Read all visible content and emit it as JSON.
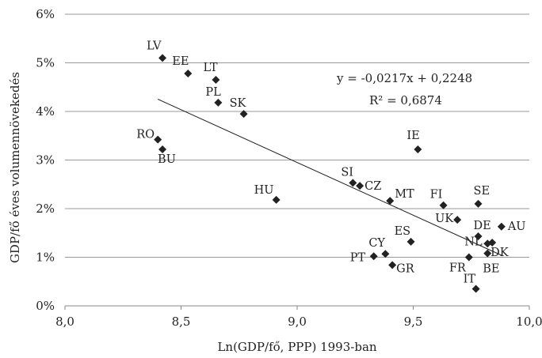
{
  "chart_data": {
    "type": "scatter",
    "xlabel": "Ln(GDP/fő, PPP) 1993-ban",
    "ylabel": "GDP/fő éves volumennövekedés",
    "xlim": [
      8.0,
      10.0
    ],
    "ylim": [
      0,
      6
    ],
    "x_ticks": [
      "8,0",
      "8,5",
      "9,0",
      "9,5",
      "10,0"
    ],
    "y_ticks": [
      "0%",
      "1%",
      "2%",
      "3%",
      "4%",
      "5%",
      "6%"
    ],
    "y_ticks_values": [
      0,
      1,
      2,
      3,
      4,
      5,
      6
    ],
    "x_ticks_values": [
      8.0,
      8.5,
      9.0,
      9.5,
      10.0
    ],
    "grid": "horizontal",
    "marker": "diamond",
    "points": [
      {
        "label": "LV",
        "x": 8.42,
        "y": 5.1
      },
      {
        "label": "EE",
        "x": 8.53,
        "y": 4.78
      },
      {
        "label": "LT",
        "x": 8.65,
        "y": 4.65
      },
      {
        "label": "PL",
        "x": 8.66,
        "y": 4.18
      },
      {
        "label": "SK",
        "x": 8.77,
        "y": 3.95
      },
      {
        "label": "RO",
        "x": 8.4,
        "y": 3.42
      },
      {
        "label": "BU",
        "x": 8.42,
        "y": 3.22
      },
      {
        "label": "HU",
        "x": 8.91,
        "y": 2.18
      },
      {
        "label": "SI",
        "x": 9.24,
        "y": 2.53
      },
      {
        "label": "CZ",
        "x": 9.27,
        "y": 2.47
      },
      {
        "label": "MT",
        "x": 9.4,
        "y": 2.16
      },
      {
        "label": "IE",
        "x": 9.52,
        "y": 3.22
      },
      {
        "label": "FI",
        "x": 9.63,
        "y": 2.07
      },
      {
        "label": "SE",
        "x": 9.78,
        "y": 2.1
      },
      {
        "label": "UK",
        "x": 9.69,
        "y": 1.77
      },
      {
        "label": "DE",
        "x": 9.78,
        "y": 1.43
      },
      {
        "label": "AU",
        "x": 9.88,
        "y": 1.63
      },
      {
        "label": "NL",
        "x": 9.82,
        "y": 1.28
      },
      {
        "label": "DK",
        "x": 9.84,
        "y": 1.3
      },
      {
        "label": "BE",
        "x": 9.82,
        "y": 1.08
      },
      {
        "label": "FR",
        "x": 9.74,
        "y": 1.0
      },
      {
        "label": "ES",
        "x": 9.49,
        "y": 1.32
      },
      {
        "label": "CY",
        "x": 9.38,
        "y": 1.07
      },
      {
        "label": "PT",
        "x": 9.33,
        "y": 1.02
      },
      {
        "label": "GR",
        "x": 9.41,
        "y": 0.84
      },
      {
        "label": "IT",
        "x": 9.77,
        "y": 0.35
      }
    ],
    "trendline": {
      "equation": "y = -0,0217x + 0,2248",
      "r_squared": "R² = 0,6874",
      "slope": -0.0217,
      "intercept": 0.2248,
      "x_range": [
        8.4,
        9.88
      ]
    }
  }
}
